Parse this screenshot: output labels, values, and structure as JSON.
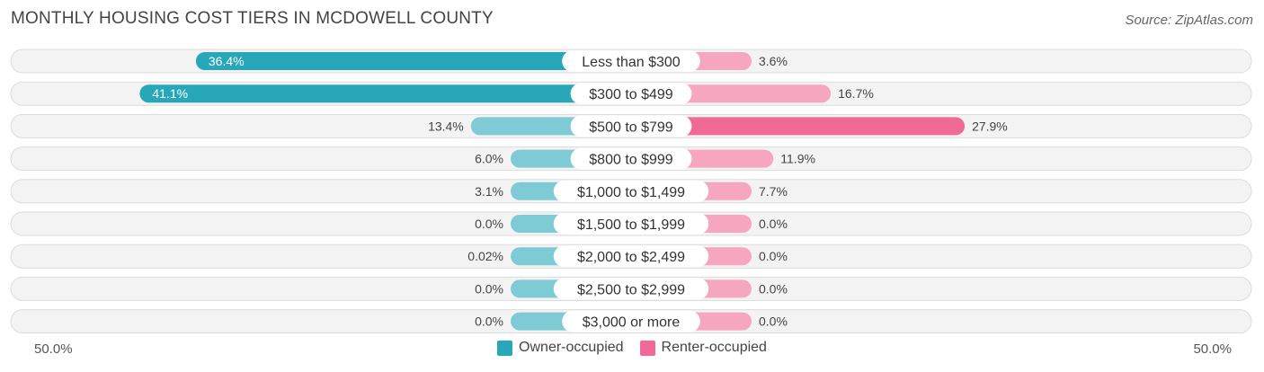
{
  "title": "MONTHLY HOUSING COST TIERS IN MCDOWELL COUNTY",
  "source": "Source: ZipAtlas.com",
  "colors": {
    "owner_strong": "#27a7b8",
    "owner_light": "#7ecbd5",
    "renter_strong": "#f06a95",
    "renter_light": "#f7a6c0",
    "track": "#efefef",
    "track_border": "#dcdcdc"
  },
  "chart_data": {
    "type": "bar",
    "orientation": "horizontal-diverging",
    "title": "MONTHLY HOUSING COST TIERS IN MCDOWELL COUNTY",
    "categories": [
      "Less than $300",
      "$300 to $499",
      "$500 to $799",
      "$800 to $999",
      "$1,000 to $1,499",
      "$1,500 to $1,999",
      "$2,000 to $2,499",
      "$2,500 to $2,999",
      "$3,000 or more"
    ],
    "series": [
      {
        "name": "Owner-occupied",
        "values": [
          36.4,
          41.1,
          13.4,
          6.0,
          3.1,
          0.0,
          0.02,
          0.0,
          0.0
        ],
        "labels": [
          "36.4%",
          "41.1%",
          "13.4%",
          "6.0%",
          "3.1%",
          "0.0%",
          "0.02%",
          "0.0%",
          "0.0%"
        ]
      },
      {
        "name": "Renter-occupied",
        "values": [
          3.6,
          16.7,
          27.9,
          11.9,
          7.7,
          0.0,
          0.0,
          0.0,
          0.0
        ],
        "labels": [
          "3.6%",
          "16.7%",
          "27.9%",
          "11.9%",
          "7.7%",
          "0.0%",
          "0.0%",
          "0.0%",
          "0.0%"
        ]
      }
    ],
    "xlim": [
      -50,
      50
    ],
    "axis_labels": {
      "left": "50.0%",
      "right": "50.0%"
    },
    "legend": {
      "position": "bottom-center"
    }
  }
}
